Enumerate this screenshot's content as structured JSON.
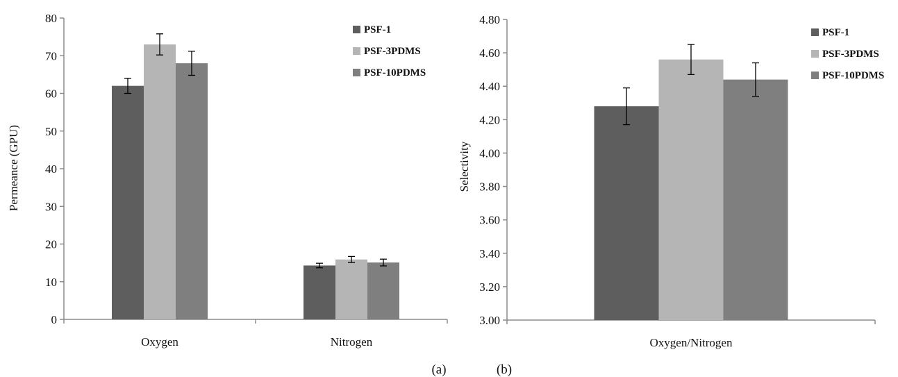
{
  "colors": {
    "psf1": "#5e5e5e",
    "psf3": "#b5b5b5",
    "psf10": "#7f7f7f",
    "axis": "#8c8c8c",
    "error": "#000000"
  },
  "chart_data": [
    {
      "type": "bar",
      "panel_label": "(a)",
      "title": "",
      "xlabel": "",
      "ylabel": "Permeance (GPU)",
      "categories": [
        "Oxygen",
        "Nitrogen"
      ],
      "ylim": [
        0,
        80
      ],
      "yticks": [
        0,
        10,
        20,
        30,
        40,
        50,
        60,
        70,
        80
      ],
      "ytick_labels": [
        "0",
        "10",
        "20",
        "30",
        "40",
        "50",
        "60",
        "70",
        "80"
      ],
      "grid": false,
      "legend": "top-right",
      "series": [
        {
          "name": "PSF-1",
          "color": "#5e5e5e",
          "values": [
            62,
            14.3
          ],
          "errors": [
            2,
            0.6
          ]
        },
        {
          "name": "PSF-3PDMS",
          "color": "#b5b5b5",
          "values": [
            73,
            15.9
          ],
          "errors": [
            2.8,
            0.8
          ]
        },
        {
          "name": "PSF-10PDMS",
          "color": "#7f7f7f",
          "values": [
            68,
            15.1
          ],
          "errors": [
            3.2,
            0.9
          ]
        }
      ]
    },
    {
      "type": "bar",
      "panel_label": "(b)",
      "title": "",
      "xlabel": "",
      "ylabel": "Selectivity",
      "categories": [
        "Oxygen/Nitrogen"
      ],
      "ylim": [
        3.0,
        4.8
      ],
      "yticks": [
        3.0,
        3.2,
        3.4,
        3.6,
        3.8,
        4.0,
        4.2,
        4.4,
        4.6,
        4.8
      ],
      "ytick_labels": [
        "3.00",
        "3.20",
        "3.40",
        "3.60",
        "3.80",
        "4.00",
        "4.20",
        "4.40",
        "4.60",
        "4.80"
      ],
      "grid": false,
      "legend": "top-right",
      "series": [
        {
          "name": "PSF-1",
          "color": "#5e5e5e",
          "values": [
            4.28
          ],
          "errors": [
            0.11
          ]
        },
        {
          "name": "PSF-3PDMS",
          "color": "#b5b5b5",
          "values": [
            4.56
          ],
          "errors": [
            0.09
          ]
        },
        {
          "name": "PSF-10PDMS",
          "color": "#7f7f7f",
          "values": [
            4.44
          ],
          "errors": [
            0.1
          ]
        }
      ]
    }
  ]
}
